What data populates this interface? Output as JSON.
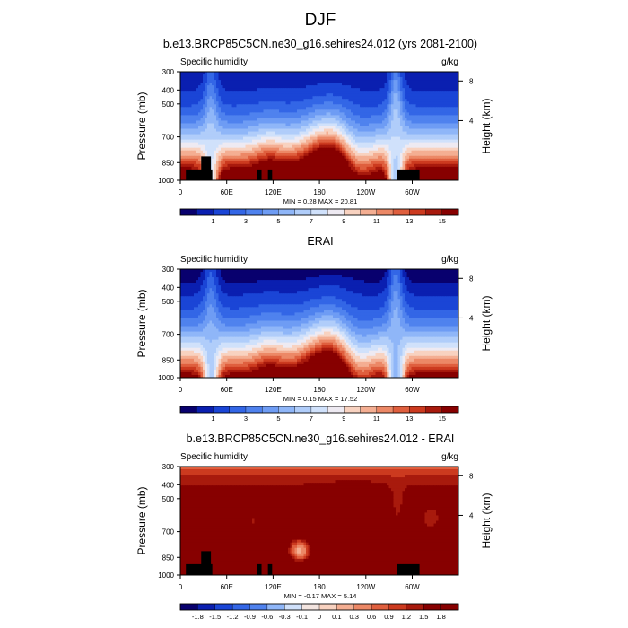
{
  "figure_title": "DJF",
  "chart_data": [
    {
      "type": "heatmap",
      "title": "b.e13.BRCP85C5CN.ne30_g16.sehires24.012 (yrs 2081-2100)",
      "left_label": "Specific humidity",
      "right_label": "g/kg",
      "ylabel": "Pressure (mb)",
      "y2label": "Height (km)",
      "xticks": [
        "0",
        "60E",
        "120E",
        "180",
        "120W",
        "60W"
      ],
      "yticks": [
        "300",
        "400",
        "500",
        "700",
        "850",
        "1000"
      ],
      "y2ticks": [
        "8",
        "4"
      ],
      "stats": "MIN =   0.28  MAX =  20.81",
      "min": 0.28,
      "max": 20.81,
      "levels": [
        0.5,
        1,
        2,
        3,
        4,
        5,
        6,
        7,
        8,
        9,
        10,
        11,
        12,
        13,
        14,
        15
      ],
      "colorbar_labels": [
        "1",
        "3",
        "5",
        "7",
        "9",
        "11",
        "13",
        "15"
      ],
      "kind": "model"
    },
    {
      "type": "heatmap",
      "title": "ERAI",
      "left_label": "Specific humidity",
      "right_label": "g/kg",
      "ylabel": "Pressure (mb)",
      "y2label": "Height (km)",
      "xticks": [
        "0",
        "60E",
        "120E",
        "180",
        "120W",
        "60W"
      ],
      "yticks": [
        "300",
        "400",
        "500",
        "700",
        "850",
        "1000"
      ],
      "y2ticks": [
        "8",
        "4"
      ],
      "stats": "MIN =   0.15  MAX =  17.52",
      "min": 0.15,
      "max": 17.52,
      "levels": [
        0.5,
        1,
        2,
        3,
        4,
        5,
        6,
        7,
        8,
        9,
        10,
        11,
        12,
        13,
        14,
        15
      ],
      "colorbar_labels": [
        "1",
        "3",
        "5",
        "7",
        "9",
        "11",
        "13",
        "15"
      ],
      "kind": "obs"
    },
    {
      "type": "heatmap",
      "title": "b.e13.BRCP85C5CN.ne30_g16.sehires24.012 - ERAI",
      "left_label": "Specific humidity",
      "right_label": "g/kg",
      "ylabel": "Pressure (mb)",
      "y2label": "Height (km)",
      "xticks": [
        "0",
        "60E",
        "120E",
        "180",
        "120W",
        "60W"
      ],
      "yticks": [
        "300",
        "400",
        "500",
        "700",
        "850",
        "1000"
      ],
      "y2ticks": [
        "8",
        "4"
      ],
      "stats": "MIN =  -0.17  MAX =   5.14",
      "min": -0.17,
      "max": 5.14,
      "levels": [
        -1.8,
        -1.5,
        -1.2,
        -0.9,
        -0.6,
        -0.3,
        -0.1,
        0,
        0.1,
        0.3,
        0.6,
        0.9,
        1.2,
        1.5,
        1.8
      ],
      "colorbar_labels": [
        "-1.8",
        "-1.5",
        "-1.2",
        "-0.9",
        "-0.6",
        "-0.3",
        "-0.1",
        "0",
        "0.1",
        "0.3",
        "0.6",
        "0.9",
        "1.2",
        "1.5",
        "1.8"
      ],
      "kind": "diff"
    }
  ],
  "colormap": [
    "#08006e",
    "#0a1fb0",
    "#1a45d6",
    "#3366e6",
    "#4f82ee",
    "#6e9cf4",
    "#8fb6f8",
    "#b0cdfa",
    "#d0e1fb",
    "#eeeaf2",
    "#f8d2c0",
    "#f4ae92",
    "#ec8866",
    "#df5f3e",
    "#cc3a1f",
    "#a81a0d",
    "#870000"
  ]
}
